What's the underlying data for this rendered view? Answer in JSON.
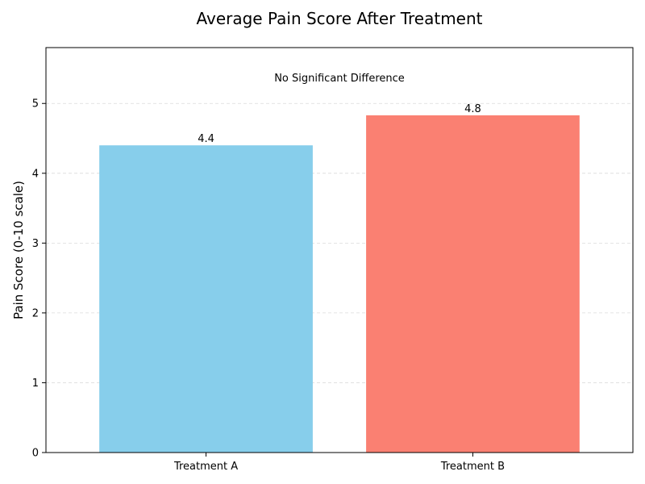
{
  "chart_data": {
    "type": "bar",
    "title": "Average Pain Score After Treatment",
    "xlabel": "",
    "ylabel": "Pain Score (0-10 scale)",
    "categories": [
      "Treatment A",
      "Treatment B"
    ],
    "values": [
      4.4,
      4.83
    ],
    "value_labels": [
      "4.4",
      "4.8"
    ],
    "colors": [
      "#87CEEB",
      "#FA8072"
    ],
    "ylim": [
      0,
      5.8
    ],
    "yticks": [
      0,
      1,
      2,
      3,
      4,
      5
    ],
    "grid": true,
    "annotation": "No Significant Difference"
  }
}
